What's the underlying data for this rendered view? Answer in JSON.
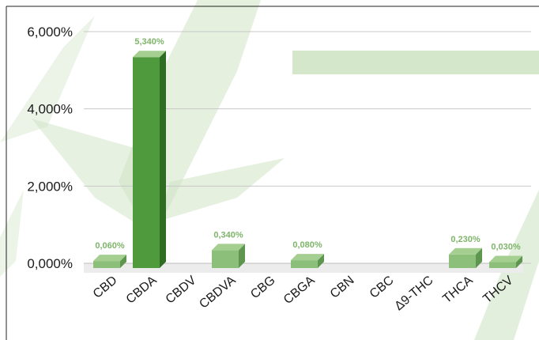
{
  "chart_data": {
    "type": "bar",
    "title": "",
    "xlabel": "",
    "ylabel": "",
    "categories": [
      "CBD",
      "CBDA",
      "CBDV",
      "CBDVA",
      "CBG",
      "CBGA",
      "CBN",
      "CBC",
      "Δ9-THC",
      "THCA",
      "THCV"
    ],
    "values": [
      0.06,
      5.34,
      null,
      0.34,
      null,
      0.08,
      null,
      null,
      null,
      0.23,
      0.03
    ],
    "data_labels": [
      "0,060%",
      "5,340%",
      "",
      "0,340%",
      "",
      "0,080%",
      "",
      "",
      "",
      "0,230%",
      "0,030%"
    ],
    "ylim": [
      0,
      6
    ],
    "yticks": [
      0,
      2,
      4,
      6
    ],
    "ytick_labels": [
      "0,000%",
      "2,000%",
      "4,000%",
      "6,000%"
    ],
    "grid": true,
    "legend": "none",
    "style": "3d-bars",
    "colors": {
      "bar_front": "#8cc07a",
      "bar_top": "#a4cf90",
      "bar_side": "#5e9650",
      "bar_highlight_front": "#4f9a3c",
      "bar_highlight_side": "#2f6e22",
      "data_label": "#7fb56a",
      "watermark": "#cfe4c5"
    }
  }
}
